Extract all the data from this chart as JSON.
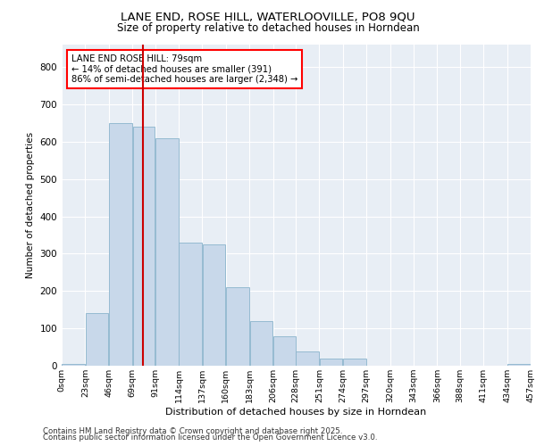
{
  "title": "LANE END, ROSE HILL, WATERLOOVILLE, PO8 9QU",
  "subtitle": "Size of property relative to detached houses in Horndean",
  "xlabel": "Distribution of detached houses by size in Horndean",
  "ylabel": "Number of detached properties",
  "bar_color": "#c8d8ea",
  "bar_edge_color": "#8ab4cc",
  "background_color": "#e8eef5",
  "annotation_text": "LANE END ROSE HILL: 79sqm\n← 14% of detached houses are smaller (391)\n86% of semi-detached houses are larger (2,348) →",
  "vertical_line_x": 79,
  "vertical_line_color": "#cc0000",
  "footer_line1": "Contains HM Land Registry data © Crown copyright and database right 2025.",
  "footer_line2": "Contains public sector information licensed under the Open Government Licence v3.0.",
  "bins": [
    0,
    23,
    46,
    69,
    91,
    114,
    137,
    160,
    183,
    206,
    228,
    251,
    274,
    297,
    320,
    343,
    366,
    388,
    411,
    434,
    457
  ],
  "bin_labels": [
    "0sqm",
    "23sqm",
    "46sqm",
    "69sqm",
    "91sqm",
    "114sqm",
    "137sqm",
    "160sqm",
    "183sqm",
    "206sqm",
    "228sqm",
    "251sqm",
    "274sqm",
    "297sqm",
    "320sqm",
    "343sqm",
    "366sqm",
    "388sqm",
    "411sqm",
    "434sqm",
    "457sqm"
  ],
  "bar_heights": [
    4,
    140,
    650,
    640,
    610,
    330,
    325,
    210,
    120,
    80,
    38,
    18,
    18,
    0,
    0,
    0,
    0,
    0,
    0,
    4
  ],
  "ylim": [
    0,
    860
  ],
  "yticks": [
    0,
    100,
    200,
    300,
    400,
    500,
    600,
    700,
    800
  ]
}
